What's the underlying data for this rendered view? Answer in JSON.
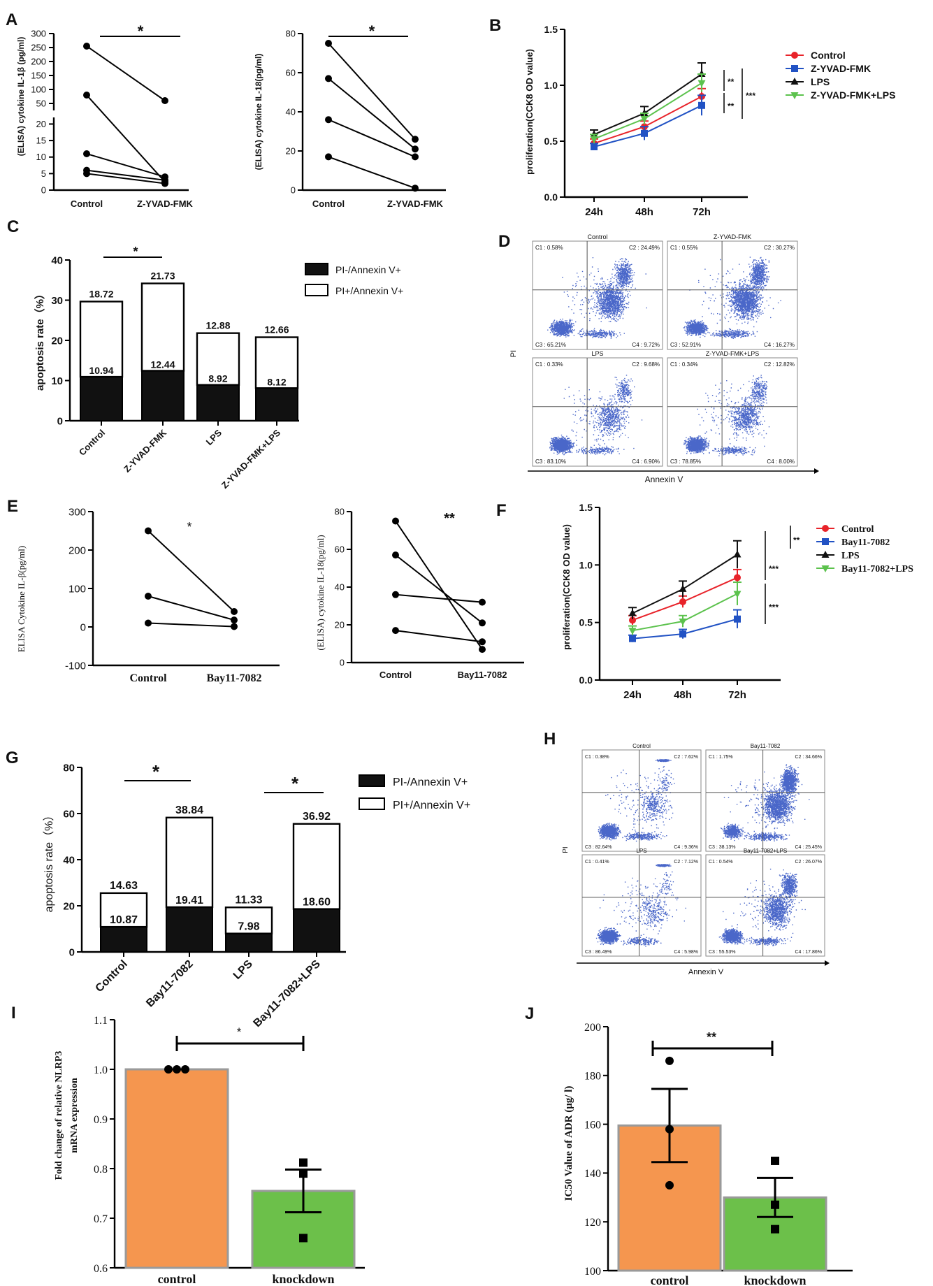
{
  "panel_labels": [
    "A",
    "B",
    "C",
    "D",
    "E",
    "F",
    "G",
    "H",
    "I",
    "J"
  ],
  "chart_data": [
    {
      "id": "A1",
      "type": "line",
      "title": "",
      "ylabel": "(ELISA) cytokine IL-1β (pg/ml)",
      "categories": [
        "Control",
        "Z-YVAD-FMK"
      ],
      "y_upper_ticks": [
        "300",
        "250",
        "200",
        "150",
        "100",
        "50"
      ],
      "y_lower_ticks": [
        "20",
        "15",
        "10",
        "5",
        "0"
      ],
      "upper_range": [
        25,
        300
      ],
      "lower_range": [
        0,
        22
      ],
      "series": [
        [
          255,
          60
        ],
        [
          80,
          2.5
        ],
        [
          11,
          4
        ],
        [
          6,
          3
        ],
        [
          5,
          2
        ]
      ],
      "significance": "*"
    },
    {
      "id": "A2",
      "type": "line",
      "ylabel": "(ELISA) cytokine IL-18(pg/ml)",
      "categories": [
        "Control",
        "Z-YVAD-FMK"
      ],
      "yticks": [
        "0",
        "20",
        "40",
        "60",
        "80"
      ],
      "ylim": [
        0,
        80
      ],
      "series": [
        [
          75,
          26
        ],
        [
          57,
          21
        ],
        [
          36,
          17
        ],
        [
          17,
          1
        ]
      ],
      "significance": "*"
    },
    {
      "id": "B",
      "type": "line",
      "ylabel": "proliferation(CCK8 OD value)",
      "categories": [
        "24h",
        "48h",
        "72h"
      ],
      "yticks": [
        "0.0",
        "0.5",
        "1.0",
        "1.5"
      ],
      "ylim": [
        0,
        1.5
      ],
      "series": [
        {
          "name": "Control",
          "color": "#e8232a",
          "marker": "circle",
          "values": [
            0.48,
            0.63,
            0.9
          ],
          "errors": [
            0.04,
            0.05,
            0.07
          ]
        },
        {
          "name": "Z-YVAD-FMK",
          "color": "#2152c4",
          "marker": "square",
          "values": [
            0.45,
            0.57,
            0.82
          ],
          "errors": [
            0.03,
            0.06,
            0.09
          ]
        },
        {
          "name": "LPS",
          "color": "#111111",
          "marker": "triangle",
          "values": [
            0.56,
            0.75,
            1.1
          ],
          "errors": [
            0.04,
            0.06,
            0.1
          ]
        },
        {
          "name": "Z-YVAD-FMK+LPS",
          "color": "#5cc24d",
          "marker": "triangle-down",
          "values": [
            0.52,
            0.7,
            1.02
          ],
          "errors": [
            0.04,
            0.05,
            0.08
          ]
        }
      ],
      "significance": [
        "**",
        "**",
        "***"
      ]
    },
    {
      "id": "C",
      "type": "bar",
      "stacked": true,
      "ylabel": "apoptosis rate（%）",
      "categories": [
        "Control",
        "Z-YVAD-FMK",
        "LPS",
        "Z-YVAD-FMK+LPS"
      ],
      "yticks": [
        "0",
        "10",
        "20",
        "30",
        "40"
      ],
      "ylim": [
        0,
        40
      ],
      "series": [
        {
          "name": "PI-/Annexin V+",
          "color": "#111111",
          "values": [
            10.94,
            12.44,
            8.92,
            8.12
          ],
          "labels": [
            "10.94",
            "12.44",
            "8.92",
            "8.12"
          ]
        },
        {
          "name": "PI+/Annexin V+",
          "color": "#ffffff",
          "values": [
            18.72,
            21.73,
            12.88,
            12.66
          ],
          "labels": [
            "18.72",
            "21.73",
            "12.88",
            "12.66"
          ]
        }
      ],
      "significance": "*"
    },
    {
      "id": "D",
      "type": "scatter",
      "xlabel": "Annexin V",
      "ylabel": "PI",
      "plots": [
        {
          "title": "Control",
          "c1": "C1 : 0.58%",
          "c2": "C2 : 24.49%",
          "c3": "C3 : 65.21%",
          "c4": "C4 : 9.72%"
        },
        {
          "title": "Z-YVAD-FMK",
          "c1": "C1 : 0.55%",
          "c2": "C2 : 30.27%",
          "c3": "C3 : 52.91%",
          "c4": "C4 : 16.27%"
        },
        {
          "title": "LPS",
          "c1": "C1 : 0.33%",
          "c2": "C2 : 9.68%",
          "c3": "C3 : 83.10%",
          "c4": "C4 : 6.90%"
        },
        {
          "title": "Z-YVAD-FMK+LPS",
          "c1": "C1 : 0.34%",
          "c2": "C2 : 12.82%",
          "c3": "C3 : 78.85%",
          "c4": "C4 : 8.00%"
        }
      ]
    },
    {
      "id": "E1",
      "type": "line",
      "ylabel": "ELISA Cytokine IL-β(pg/ml)",
      "categories": [
        "Control",
        "Bay11-7082"
      ],
      "yticks": [
        "-100",
        "0",
        "100",
        "200",
        "300"
      ],
      "ylim": [
        -100,
        300
      ],
      "series": [
        [
          250,
          40
        ],
        [
          80,
          18
        ],
        [
          10,
          1
        ]
      ],
      "significance": "*"
    },
    {
      "id": "E2",
      "type": "line",
      "ylabel": "(ELISA) cytokine IL-18(pg/ml)",
      "categories": [
        "Control",
        "Bay11-7082"
      ],
      "yticks": [
        "0",
        "20",
        "40",
        "60",
        "80"
      ],
      "ylim": [
        0,
        80
      ],
      "series": [
        [
          75,
          7
        ],
        [
          57,
          21
        ],
        [
          36,
          32
        ],
        [
          17,
          11
        ]
      ],
      "significance": "**"
    },
    {
      "id": "F",
      "type": "line",
      "ylabel": "proliferation(CCK8 OD value)",
      "categories": [
        "24h",
        "48h",
        "72h"
      ],
      "yticks": [
        "0.0",
        "0.5",
        "1.0",
        "1.5"
      ],
      "ylim": [
        0,
        1.5
      ],
      "series": [
        {
          "name": "Control",
          "color": "#e8232a",
          "marker": "circle",
          "values": [
            0.52,
            0.68,
            0.89
          ],
          "errors": [
            0.04,
            0.05,
            0.07
          ]
        },
        {
          "name": "Bay11-7082",
          "color": "#2152c4",
          "marker": "square",
          "values": [
            0.36,
            0.4,
            0.53
          ],
          "errors": [
            0.03,
            0.04,
            0.08
          ]
        },
        {
          "name": "LPS",
          "color": "#111111",
          "marker": "triangle",
          "values": [
            0.58,
            0.79,
            1.09
          ],
          "errors": [
            0.05,
            0.07,
            0.12
          ]
        },
        {
          "name": "Bay11-7082+LPS",
          "color": "#5cc24d",
          "marker": "triangle-down",
          "values": [
            0.43,
            0.51,
            0.75
          ],
          "errors": [
            0.04,
            0.05,
            0.1
          ]
        }
      ],
      "significance": [
        "***",
        "**",
        "***"
      ]
    },
    {
      "id": "G",
      "type": "bar",
      "stacked": true,
      "ylabel": "apoptosis rate（%）",
      "categories": [
        "Control",
        "Bay11-7082",
        "LPS",
        "Bay11-7082+LPS"
      ],
      "yticks": [
        "0",
        "20",
        "40",
        "60",
        "80"
      ],
      "ylim": [
        0,
        80
      ],
      "series": [
        {
          "name": "PI-/Annexin V+",
          "color": "#111111",
          "values": [
            10.87,
            19.41,
            7.98,
            18.6
          ],
          "labels": [
            "10.87",
            "19.41",
            "7.98",
            "18.60"
          ]
        },
        {
          "name": "PI+/Annexin V+",
          "color": "#ffffff",
          "values": [
            14.63,
            38.84,
            11.33,
            36.92
          ],
          "labels": [
            "14.63",
            "38.84",
            "11.33",
            "36.92"
          ]
        }
      ],
      "significance": [
        "*",
        "*"
      ]
    },
    {
      "id": "H",
      "type": "scatter",
      "xlabel": "Annexin V",
      "ylabel": "PI",
      "plots": [
        {
          "title": "Control",
          "c1": "C1 : 0.38%",
          "c2": "C2 : 7.62%",
          "c3": "C3 : 82.64%",
          "c4": "C4 : 9.36%"
        },
        {
          "title": "Bay11-7082",
          "c1": "C1 : 1.75%",
          "c2": "C2 : 34.66%",
          "c3": "C3 : 38.13%",
          "c4": "C4 : 25.45%"
        },
        {
          "title": "LPS",
          "c1": "C1 : 0.41%",
          "c2": "C2 : 7.12%",
          "c3": "C3 : 86.49%",
          "c4": "C4 : 5.98%"
        },
        {
          "title": "Bay11-7082+LPS",
          "c1": "C1 : 0.54%",
          "c2": "C2 : 26.07%",
          "c3": "C3 : 55.53%",
          "c4": "C4 : 17.86%"
        }
      ]
    },
    {
      "id": "I",
      "type": "bar",
      "ylabel_lines": [
        "Fold change of relative NLRP3",
        "mRNA expression"
      ],
      "categories": [
        "control",
        "knockdown"
      ],
      "yticks": [
        "0.6",
        "0.7",
        "0.8",
        "0.9",
        "1.0",
        "1.1"
      ],
      "ylim": [
        0.6,
        1.1
      ],
      "values": [
        1.0,
        0.755
      ],
      "errors": [
        0,
        0.043
      ],
      "colors": [
        "#f5964f",
        "#6cc04a"
      ],
      "points": [
        [
          1.0,
          1.0,
          1.0
        ],
        [
          0.812,
          0.79,
          0.66
        ]
      ],
      "significance": "*"
    },
    {
      "id": "J",
      "type": "bar",
      "ylabel": "IC50 Value of ADR (μg/ l)",
      "categories": [
        "control",
        "knockdown"
      ],
      "yticks": [
        "100",
        "120",
        "140",
        "160",
        "180",
        "200"
      ],
      "ylim": [
        100,
        200
      ],
      "values": [
        159.5,
        130
      ],
      "errors": [
        15,
        8
      ],
      "colors": [
        "#f5964f",
        "#6cc04a"
      ],
      "points": [
        [
          186,
          158,
          135
        ],
        [
          145,
          127,
          117
        ]
      ],
      "significance": "**"
    }
  ]
}
